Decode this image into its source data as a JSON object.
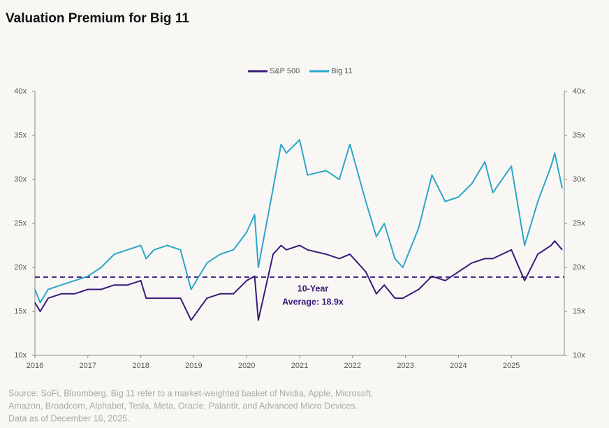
{
  "chart_data": {
    "type": "line",
    "title": "Valuation Premium for Big 11",
    "x": [
      2016.0,
      2016.1,
      2016.25,
      2016.5,
      2016.75,
      2017.0,
      2017.25,
      2017.5,
      2017.75,
      2018.0,
      2018.1,
      2018.25,
      2018.5,
      2018.75,
      2018.95,
      2019.25,
      2019.5,
      2019.75,
      2020.0,
      2020.15,
      2020.22,
      2020.5,
      2020.65,
      2020.75,
      2021.0,
      2021.15,
      2021.5,
      2021.75,
      2021.95,
      2022.25,
      2022.45,
      2022.6,
      2022.8,
      2022.95,
      2023.25,
      2023.5,
      2023.75,
      2024.0,
      2024.25,
      2024.5,
      2024.65,
      2025.0,
      2025.25,
      2025.5,
      2025.75,
      2025.82,
      2025.96
    ],
    "series": [
      {
        "name": "S&P 500",
        "color": "#3b1a78",
        "values": [
          16,
          15,
          16.5,
          17,
          17,
          17.5,
          17.5,
          18,
          18,
          18.5,
          16.5,
          16.5,
          16.5,
          16.5,
          14,
          16.5,
          17,
          17,
          18.5,
          19,
          14,
          21.5,
          22.5,
          22,
          22.5,
          22,
          21.5,
          21,
          21.5,
          19.5,
          17,
          18,
          16.5,
          16.5,
          17.5,
          19,
          18.5,
          19.5,
          20.5,
          21,
          21,
          22,
          18.5,
          21.5,
          22.5,
          23,
          22
        ]
      },
      {
        "name": "Big 11",
        "color": "#2ba6c8",
        "values": [
          17.5,
          16,
          17.5,
          18,
          18.5,
          19,
          20,
          21.5,
          22,
          22.5,
          21,
          22,
          22.5,
          22,
          17.5,
          20.5,
          21.5,
          22,
          24,
          26,
          20,
          29,
          34,
          33,
          34.5,
          30.5,
          31,
          30,
          34,
          27.5,
          23.5,
          25,
          21,
          20,
          24.5,
          30.5,
          27.5,
          28,
          29.5,
          32,
          28.5,
          31.5,
          22.5,
          27.5,
          31.5,
          33,
          29
        ]
      }
    ],
    "xlim": [
      2016,
      2026
    ],
    "xticks": [
      2016,
      2017,
      2018,
      2019,
      2020,
      2021,
      2022,
      2023,
      2024,
      2025
    ],
    "ylim": [
      10,
      40
    ],
    "yticks": [
      {
        "value": 10,
        "label": "10x"
      },
      {
        "value": 15,
        "label": "15x"
      },
      {
        "value": 20,
        "label": "20x"
      },
      {
        "value": 25,
        "label": "25x"
      },
      {
        "value": 30,
        "label": "30x"
      },
      {
        "value": 35,
        "label": "35x"
      },
      {
        "value": 40,
        "label": "40x"
      }
    ],
    "y2lim": [
      10,
      40
    ],
    "y2ticks": [
      {
        "value": 10,
        "label": "10x"
      },
      {
        "value": 15,
        "label": "15x"
      },
      {
        "value": 20,
        "label": "20x"
      },
      {
        "value": 25,
        "label": "25x"
      },
      {
        "value": 30,
        "label": "30x"
      },
      {
        "value": 35,
        "label": "35x"
      },
      {
        "value": 40,
        "label": "40x"
      }
    ],
    "reference_line": {
      "value": 18.9,
      "color": "#3b1a78"
    },
    "annotation": [
      "10-Year",
      "Average: 18.9x"
    ],
    "footnote": [
      "Source: SoFi, Bloomberg. Big 11 refer to a market-weighted basket of Nvidia, Apple, Microsoft,",
      "Amazon, Broadcom, Alphabet, Tesla, Meta, Oracle, Palantir, and Advanced Micro Devices.",
      "Data as of December 16, 2025."
    ]
  }
}
